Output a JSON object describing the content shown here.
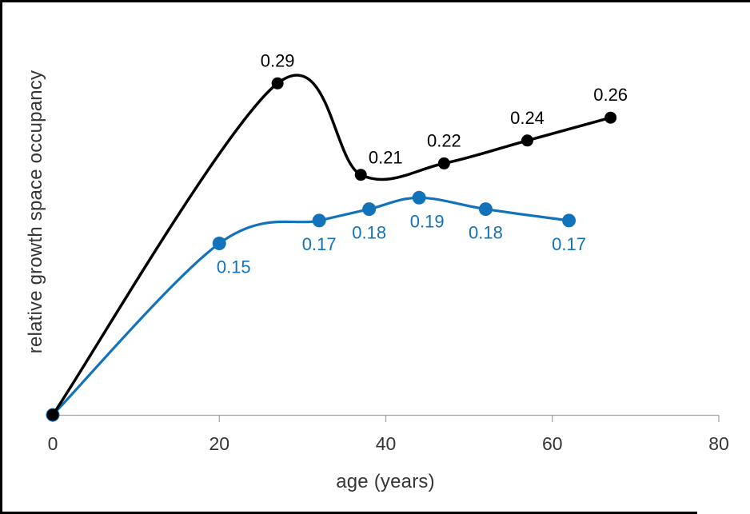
{
  "chart_data": {
    "type": "line",
    "title": "",
    "xlabel": "age (years)",
    "ylabel": "relative growth space occupancy",
    "x_ticks": [
      "0",
      "20",
      "40",
      "60",
      "80"
    ],
    "xlim": [
      0,
      80
    ],
    "ylim": [
      0,
      0.36
    ],
    "grid": false,
    "legend": "none",
    "axis_color": "#A6A6A6",
    "text_color": "#363636",
    "frame_border_color": "#000000",
    "series": [
      {
        "id": "lower",
        "name": "lower curve (blue)",
        "color": "#1272BA",
        "line_width": 3.2,
        "marker_radius": 8.5,
        "smooth": true,
        "label_position": "below",
        "points": [
          {
            "x": 0,
            "y": 0.0,
            "label": null
          },
          {
            "x": 20,
            "y": 0.15,
            "label": "0.15",
            "label_dx": 18
          },
          {
            "x": 32,
            "y": 0.17,
            "label": "0.17"
          },
          {
            "x": 38,
            "y": 0.18,
            "label": "0.18"
          },
          {
            "x": 44,
            "y": 0.19,
            "label": "0.19",
            "label_dx": 10
          },
          {
            "x": 52,
            "y": 0.18,
            "label": "0.18"
          },
          {
            "x": 62,
            "y": 0.17,
            "label": "0.17"
          }
        ]
      },
      {
        "id": "upper",
        "name": "upper curve (black)",
        "color": "#000000",
        "line_width": 3.5,
        "marker_radius": 7.5,
        "smooth": true,
        "label_position": "above",
        "points": [
          {
            "x": 0,
            "y": 0.0,
            "label": null
          },
          {
            "x": 27,
            "y": 0.29,
            "label": "0.29"
          },
          {
            "x": 37,
            "y": 0.21,
            "label": "0.21",
            "label_dx": 31,
            "label_dy": 7
          },
          {
            "x": 47,
            "y": 0.22,
            "label": "0.22"
          },
          {
            "x": 57,
            "y": 0.24,
            "label": "0.24"
          },
          {
            "x": 67,
            "y": 0.26,
            "label": "0.26"
          }
        ]
      }
    ]
  }
}
